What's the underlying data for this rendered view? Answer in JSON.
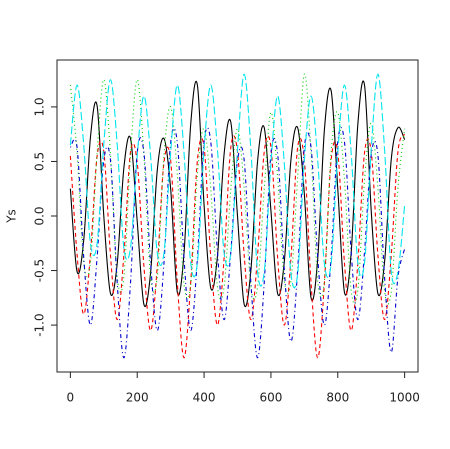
{
  "chart_data": {
    "type": "line",
    "y_label": "Ys",
    "xlim": [
      -40,
      1040
    ],
    "ylim": [
      -1.43,
      1.43
    ],
    "xticks": [
      0,
      200,
      400,
      600,
      800,
      1000
    ],
    "yticks": [
      {
        "value": -1.0,
        "label": "-1.0"
      },
      {
        "value": -0.5,
        "label": "-0.5"
      },
      {
        "value": 0.0,
        "label": "0.0"
      },
      {
        "value": 0.5,
        "label": "0.5"
      },
      {
        "value": 1.0,
        "label": "1.0"
      }
    ],
    "x": [
      0,
      20,
      40,
      60,
      80,
      100,
      120,
      140,
      160,
      180,
      200,
      220,
      240,
      260,
      280,
      300,
      320,
      340,
      360,
      380,
      400,
      420,
      440,
      460,
      480,
      500,
      520,
      540,
      560,
      580,
      600,
      620,
      640,
      660,
      680,
      700,
      720,
      740,
      760,
      780,
      800,
      820,
      840,
      860,
      880,
      900,
      920,
      940,
      960,
      980,
      1000
    ],
    "series": [
      {
        "color": "#000000",
        "dash": "none",
        "values": [
          0.25,
          -0.51,
          -0.22,
          0.72,
          1.01,
          0,
          -0.71,
          -0.44,
          0.44,
          0.71,
          -0.05,
          -0.81,
          -0.52,
          0.42,
          0.71,
          0.25,
          -0.7,
          -0.34,
          0.84,
          1.2,
          0.1,
          -0.66,
          -0.37,
          0.57,
          0.86,
          0,
          -0.81,
          -0.5,
          0.5,
          0.81,
          0.05,
          -0.71,
          -0.42,
          0.52,
          0.81,
          0.2,
          -0.75,
          -0.39,
          0.79,
          1.15,
          0.25,
          -0.7,
          -0.34,
          0.84,
          1.2,
          0.05,
          -0.71,
          -0.42,
          0.52,
          0.81,
          0.7
        ]
      },
      {
        "color": "#ff0000",
        "dash": "4 3",
        "values": [
          0.55,
          -0.35,
          -0.9,
          -0.35,
          0.55,
          0.59,
          -0.36,
          -0.95,
          -0.36,
          0.59,
          0.49,
          -0.46,
          -1.05,
          -0.46,
          0.49,
          0.51,
          -0.61,
          -1.3,
          -0.61,
          0.51,
          0.63,
          -0.38,
          -1.0,
          -0.38,
          0.63,
          0.59,
          -0.36,
          -0.95,
          -0.36,
          0.59,
          0.63,
          -0.38,
          -1.0,
          -0.38,
          0.63,
          0.51,
          -0.61,
          -1.3,
          -0.61,
          0.51,
          0.58,
          -0.43,
          -1.05,
          -0.43,
          0.58,
          0.59,
          -0.36,
          -0.95,
          -0.36,
          0.59,
          0.75
        ]
      },
      {
        "color": "#00cd00",
        "dash": "1 3",
        "values": [
          1.2,
          0.58,
          -0.43,
          -0.43,
          0.58,
          1.25,
          0.56,
          -0.56,
          -0.56,
          0.56,
          1.25,
          0.56,
          -0.56,
          -0.56,
          0.56,
          1.0,
          0.38,
          -0.63,
          -0.63,
          0.38,
          0.8,
          0.25,
          -0.65,
          -0.65,
          0.25,
          0.8,
          0.25,
          -0.65,
          -0.65,
          0.25,
          0.95,
          0.36,
          -0.59,
          -0.59,
          0.36,
          1.3,
          0.58,
          -0.6,
          -0.6,
          0.58,
          0.95,
          0.33,
          -0.68,
          -0.68,
          0.33,
          0.85,
          0.26,
          -0.69,
          -0.69,
          0.26,
          0.8
        ]
      },
      {
        "color": "#0000cd",
        "dash": "1 3 4 3",
        "values": [
          0.63,
          0.63,
          -0.38,
          -1.0,
          -0.38,
          0.51,
          0.51,
          -0.61,
          -1.3,
          -0.61,
          0.58,
          0.58,
          -0.43,
          -1.05,
          -0.43,
          0.67,
          0.67,
          -0.39,
          -1.05,
          -0.39,
          0.68,
          0.68,
          -0.33,
          -0.95,
          -0.33,
          0.51,
          0.51,
          -0.61,
          -1.3,
          -0.61,
          0.57,
          0.57,
          -0.49,
          -1.15,
          -0.49,
          0.63,
          0.63,
          -0.38,
          -1.0,
          -0.38,
          0.68,
          0.68,
          -0.33,
          -0.95,
          -0.33,
          0.56,
          0.56,
          -0.56,
          -1.25,
          -0.56,
          -0.3
        ]
      },
      {
        "color": "#00e5ee",
        "dash": "8 3",
        "values": [
          0.65,
          1.2,
          0.65,
          -0.25,
          -0.25,
          0.66,
          1.25,
          0.66,
          -0.29,
          -0.29,
          0.55,
          1.1,
          0.55,
          -0.34,
          -0.34,
          0.58,
          1.2,
          0.58,
          -0.43,
          -0.43,
          0.61,
          1.2,
          0.61,
          -0.34,
          -0.34,
          0.61,
          1.3,
          0.61,
          -0.51,
          -0.51,
          0.48,
          1.1,
          0.48,
          -0.53,
          -0.53,
          0.51,
          1.1,
          0.51,
          -0.44,
          -0.44,
          0.58,
          1.2,
          0.58,
          -0.43,
          -0.43,
          0.61,
          1.3,
          0.61,
          -0.51,
          -0.51,
          0.1
        ]
      }
    ]
  }
}
